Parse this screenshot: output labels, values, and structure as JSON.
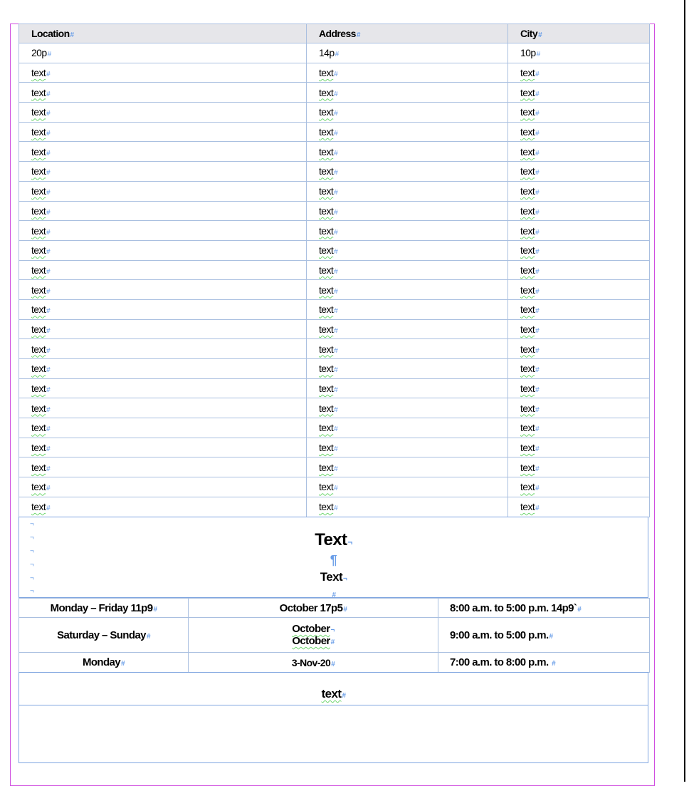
{
  "table": {
    "headers": [
      "Location",
      "Address",
      "City"
    ],
    "widths_row": [
      "20p",
      "14p",
      "10p"
    ],
    "rows": [
      [
        "text",
        "text",
        "text"
      ],
      [
        "text",
        "text",
        "text"
      ],
      [
        "text",
        "text",
        "text"
      ],
      [
        "text",
        "text",
        "text"
      ],
      [
        "text",
        "text",
        "text"
      ],
      [
        "text",
        "text",
        "text"
      ],
      [
        "text",
        "text",
        "text"
      ],
      [
        "text",
        "text",
        "text"
      ],
      [
        "text",
        "text",
        "text"
      ],
      [
        "text",
        "text",
        "text"
      ],
      [
        "text",
        "text",
        "text"
      ],
      [
        "text",
        "text",
        "text"
      ],
      [
        "text",
        "text",
        "text"
      ],
      [
        "text",
        "text",
        "text"
      ],
      [
        "text",
        "text",
        "text"
      ],
      [
        "text",
        "text",
        "text"
      ],
      [
        "text",
        "text",
        "text"
      ],
      [
        "text",
        "text",
        "text"
      ],
      [
        "text",
        "text",
        "text"
      ],
      [
        "text",
        "text",
        "text"
      ],
      [
        "text",
        "text",
        "text"
      ],
      [
        "text",
        "text",
        "text"
      ],
      [
        "text",
        "text",
        "text"
      ]
    ]
  },
  "heading": {
    "title": "Text",
    "subtitle": "Text"
  },
  "schedule": [
    {
      "days": "Monday – Friday 11p9",
      "dates": [
        "October 17p5"
      ],
      "hours": "8:00 a.m. to 5:00 p.m.  14p9`"
    },
    {
      "days": "Saturday – Sunday",
      "dates": [
        "October",
        "October"
      ],
      "hours": "9:00 a.m. to 5:00 p.m."
    },
    {
      "days": "Monday",
      "dates": [
        "3-Nov-20"
      ],
      "hours": "7:00 a.m. to 8:00 p.m. "
    }
  ],
  "footer": {
    "text": "text"
  },
  "colors": {
    "frame": "#d04ee0",
    "grid": "#a9bfe0",
    "header_bg": "#e6e6ea",
    "hidden_chars": "#6a9ee8"
  }
}
